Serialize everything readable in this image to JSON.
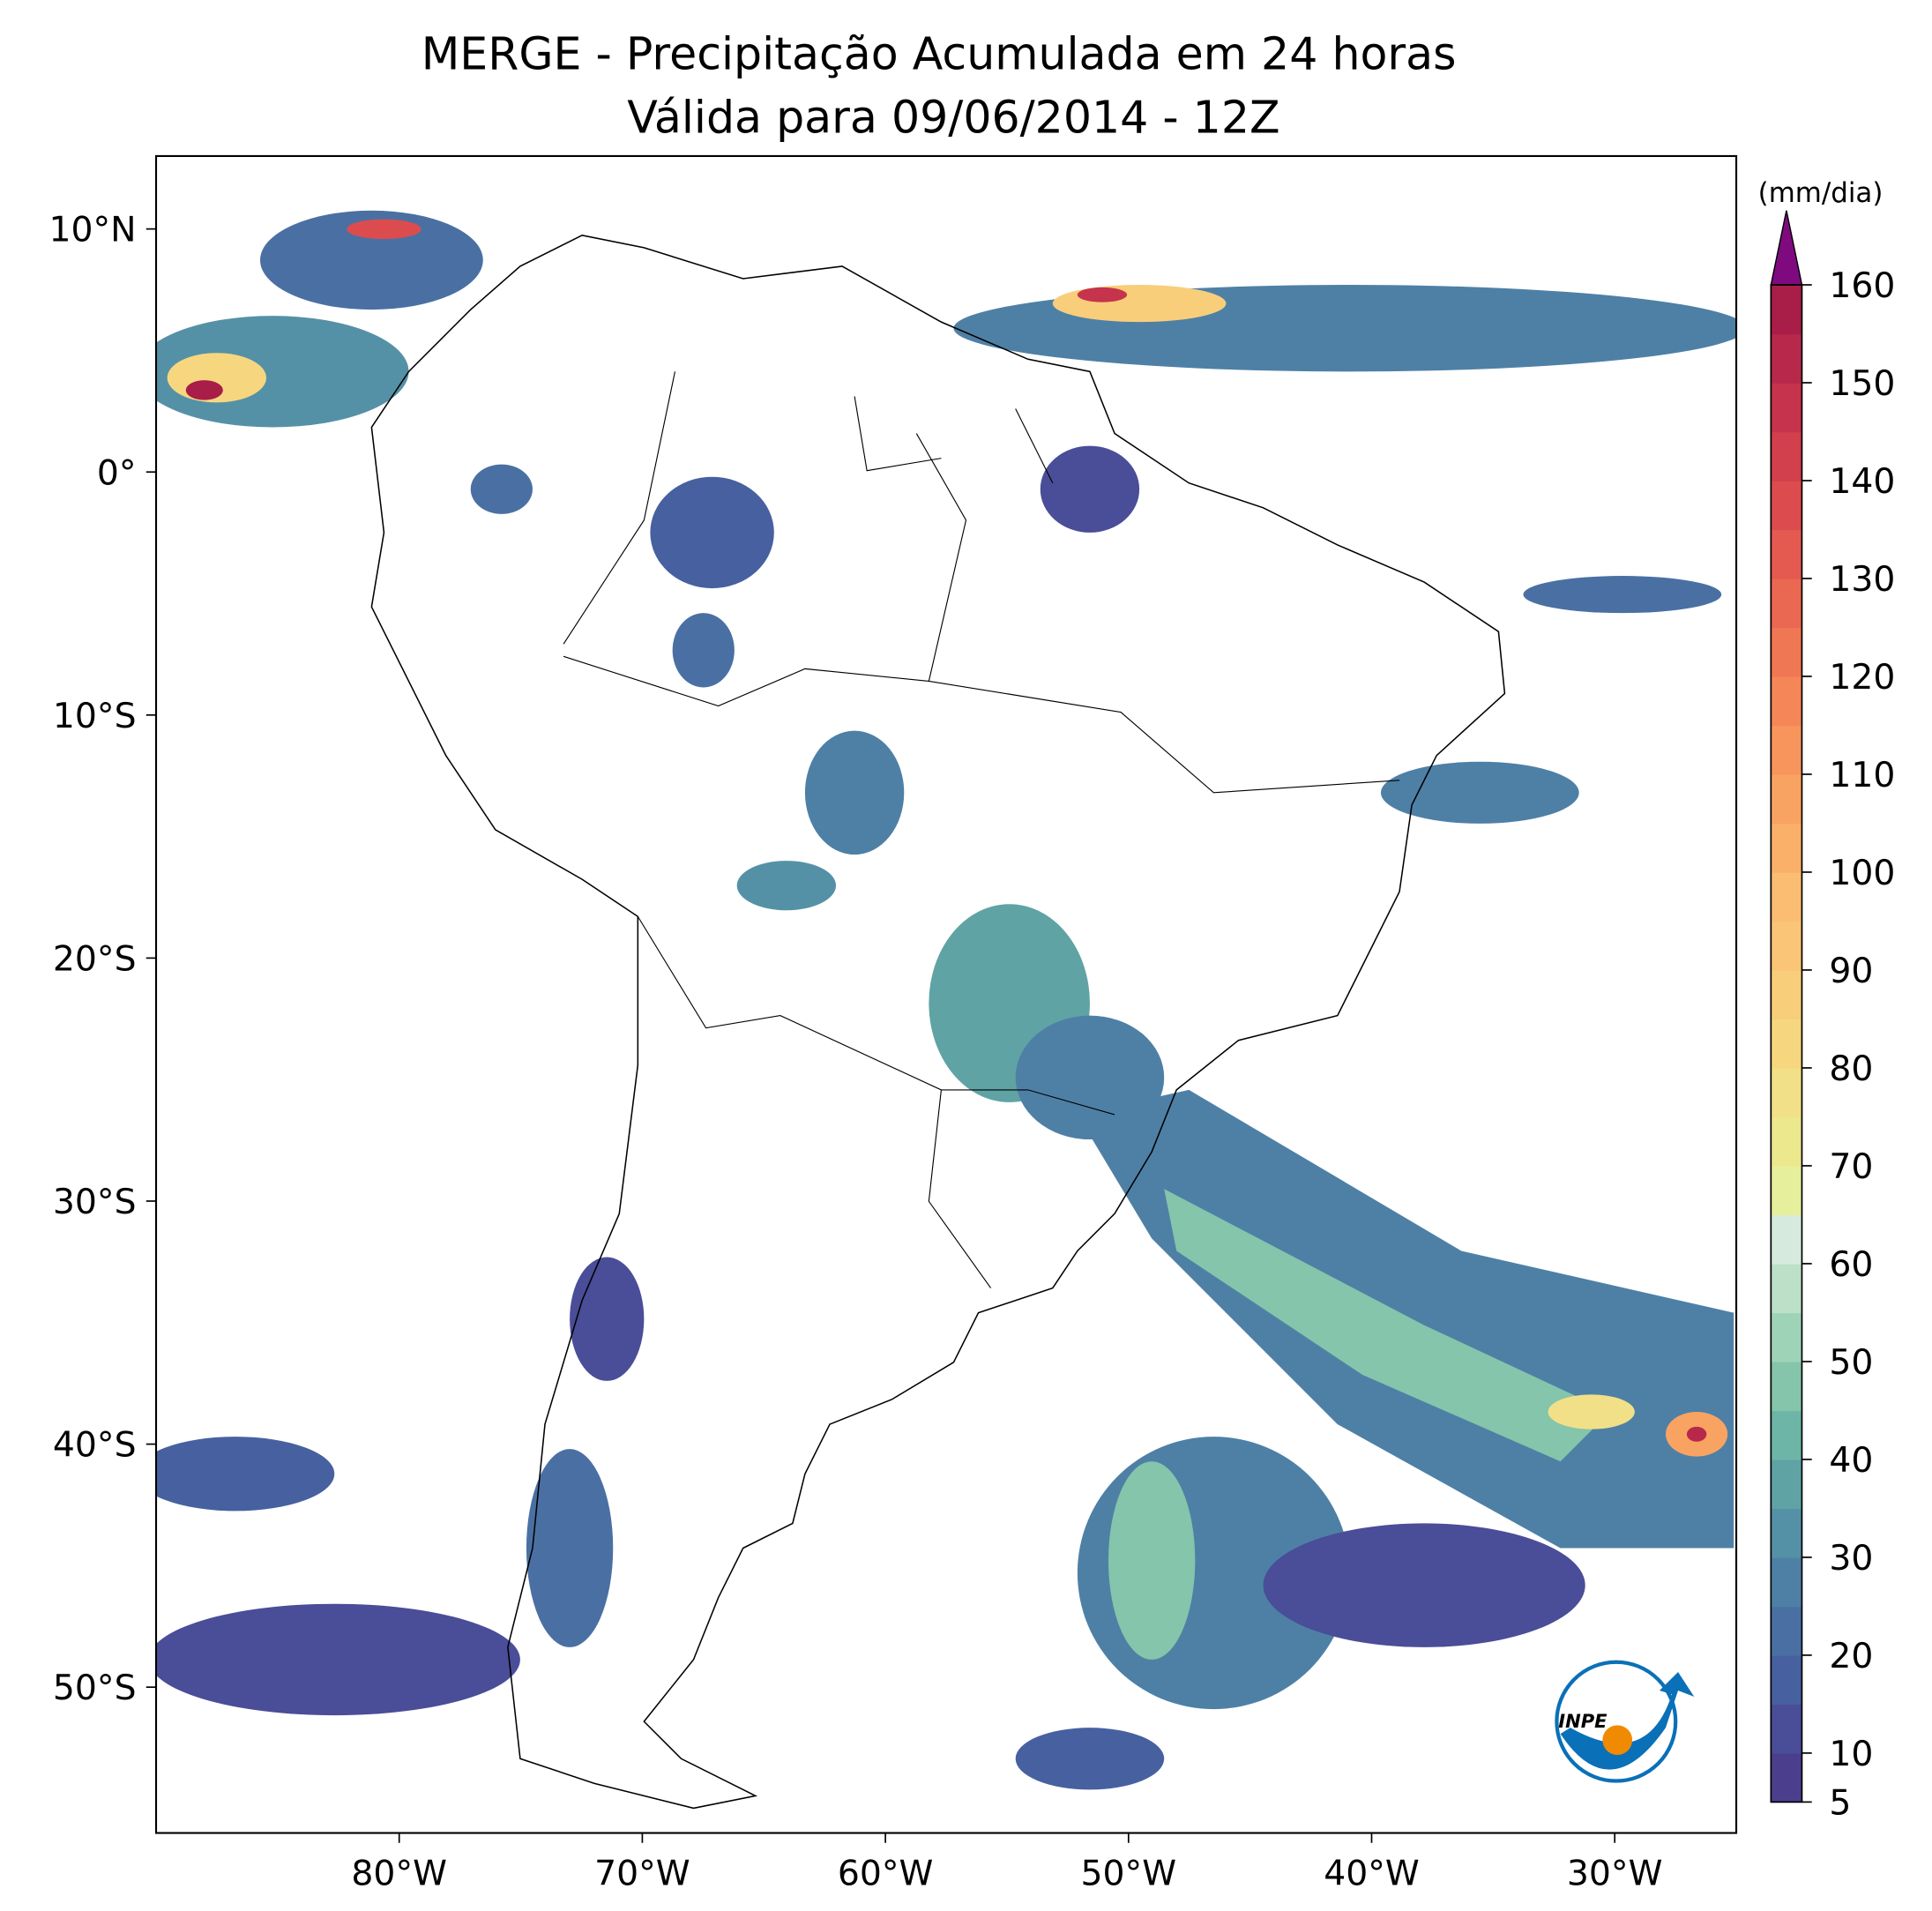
{
  "title": "MERGE - Precipitação Acumulada em 24 horas",
  "subtitle": "Válida para 09/06/2014 - 12Z",
  "map": {
    "xlim": [
      -90,
      -25
    ],
    "ylim": [
      -56,
      13
    ],
    "xticks": [
      {
        "value": -80,
        "label": "80°W"
      },
      {
        "value": -70,
        "label": "70°W"
      },
      {
        "value": -60,
        "label": "60°W"
      },
      {
        "value": -50,
        "label": "50°W"
      },
      {
        "value": -40,
        "label": "40°W"
      },
      {
        "value": -30,
        "label": "30°W"
      }
    ],
    "yticks": [
      {
        "value": 10,
        "label": "10°N"
      },
      {
        "value": 0,
        "label": "0°"
      },
      {
        "value": -10,
        "label": "10°S"
      },
      {
        "value": -20,
        "label": "20°S"
      },
      {
        "value": -30,
        "label": "30°S"
      },
      {
        "value": -40,
        "label": "40°S"
      },
      {
        "value": -50,
        "label": "50°S"
      }
    ]
  },
  "colorbar": {
    "unit": "(mm/dia)",
    "lim": [
      5,
      160
    ],
    "ticks": [
      5,
      10,
      20,
      30,
      40,
      50,
      60,
      70,
      80,
      90,
      100,
      110,
      120,
      130,
      140,
      150,
      160
    ],
    "colors": [
      "#4b3f8d",
      "#4a4d97",
      "#47609f",
      "#4a70a3",
      "#4e80a6",
      "#5591a6",
      "#5fa3a5",
      "#6db5a6",
      "#84c5ab",
      "#9fd3b8",
      "#bce0c8",
      "#d6ebdd",
      "#e6ef9c",
      "#ece88e",
      "#f2e088",
      "#f6d780",
      "#f8ce7a",
      "#fac576",
      "#fbbd72",
      "#fbb06a",
      "#f9a363",
      "#f7955d",
      "#f48658",
      "#f07754",
      "#ea6852",
      "#e45a50",
      "#dc4c4e",
      "#d23f4d",
      "#c6334c",
      "#b8284b",
      "#a91d49"
    ],
    "extend_color": "#7f0a7f"
  },
  "logo": "INPE"
}
